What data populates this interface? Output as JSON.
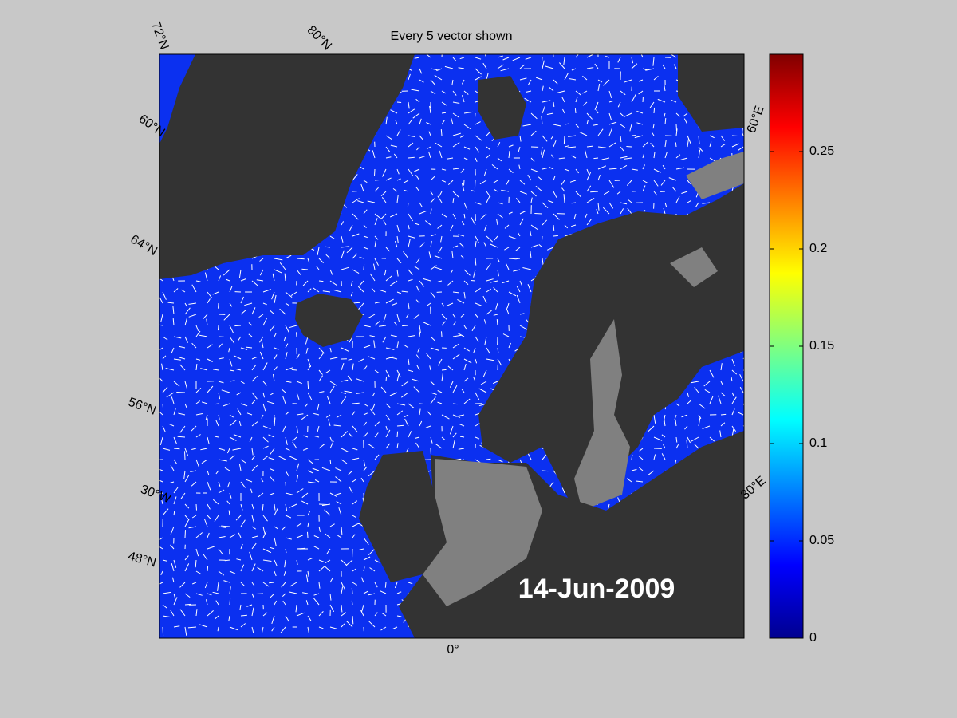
{
  "title": "Every 5 vector shown",
  "date": "14-Jun-2009",
  "map_labels": [
    "72°N",
    "80°N",
    "60°N",
    "64°N",
    "56°N",
    "30°W",
    "48°N",
    "0°",
    "30°E",
    "60°E"
  ],
  "colorbar": {
    "colormap": "jet",
    "lim": [
      0,
      0.3
    ],
    "ticks": [
      0,
      0.05,
      0.1,
      0.15,
      0.2,
      0.25
    ]
  }
}
